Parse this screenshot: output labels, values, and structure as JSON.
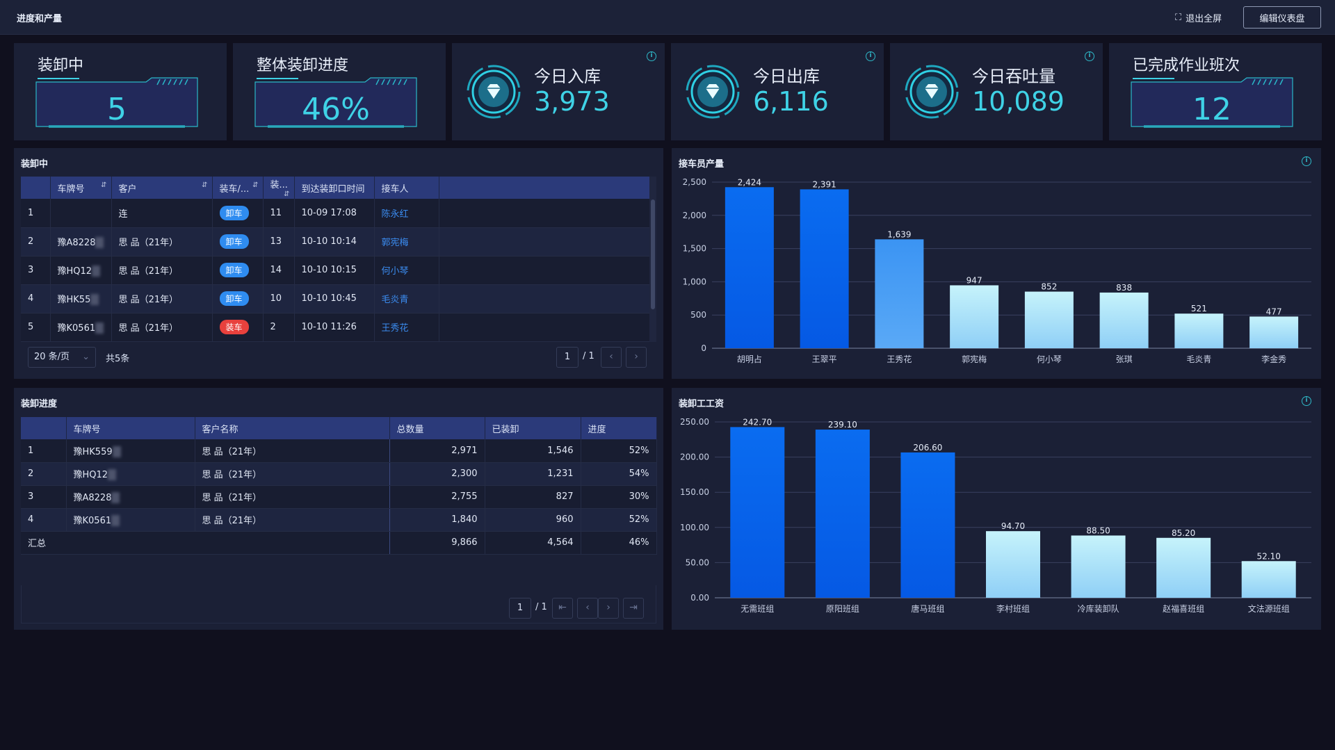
{
  "header": {
    "title": "进度和产量",
    "exit_label": "退出全屏",
    "edit_label": "编辑仪表盘"
  },
  "kpis": [
    {
      "title": "装卸中",
      "value": "5"
    },
    {
      "title": "整体装卸进度",
      "value": "46%"
    },
    {
      "title": "今日入库",
      "value": "3,973"
    },
    {
      "title": "今日出库",
      "value": "6,116"
    },
    {
      "title": "今日吞吐量",
      "value": "10,089"
    },
    {
      "title": "已完成作业班次",
      "value": "12"
    }
  ],
  "loading": {
    "title": "装卸中",
    "columns": [
      "",
      "车牌号",
      "客户",
      "装车/...",
      "装...",
      "到达装卸口时间",
      "接车人"
    ],
    "rows": [
      {
        "idx": "1",
        "plate": "",
        "customer": "连",
        "type": "卸车",
        "type_color": "blue",
        "qty": "11",
        "arrive": "10-09 17:08",
        "receiver": "陈永红"
      },
      {
        "idx": "2",
        "plate": "豫A8228",
        "customer": "思   品（21年）",
        "type": "卸车",
        "type_color": "blue",
        "qty": "13",
        "arrive": "10-10 10:14",
        "receiver": "郭宪梅"
      },
      {
        "idx": "3",
        "plate": "豫HQ12",
        "customer": "思   品（21年）",
        "type": "卸车",
        "type_color": "blue",
        "qty": "14",
        "arrive": "10-10 10:15",
        "receiver": "何小琴"
      },
      {
        "idx": "4",
        "plate": "豫HK55",
        "customer": "思   品（21年）",
        "type": "卸车",
        "type_color": "blue",
        "qty": "10",
        "arrive": "10-10 10:45",
        "receiver": "毛炎青"
      },
      {
        "idx": "5",
        "plate": "豫K0561",
        "customer": "思   品（21年）",
        "type": "装车",
        "type_color": "red",
        "qty": "2",
        "arrive": "10-10 11:26",
        "receiver": "王秀花"
      }
    ],
    "page_size": "20 条/页",
    "total": "共5条",
    "page": "1",
    "page_total": "/ 1"
  },
  "progress": {
    "title": "装卸进度",
    "columns": [
      "",
      "车牌号",
      "客户名称",
      "总数量",
      "已装卸",
      "进度"
    ],
    "rows": [
      {
        "idx": "1",
        "plate": "豫HK559",
        "customer": "思   品（21年）",
        "total": "2,971",
        "done": "1,546",
        "pct": "52%"
      },
      {
        "idx": "2",
        "plate": "豫HQ12",
        "customer": "思   品（21年）",
        "total": "2,300",
        "done": "1,231",
        "pct": "54%"
      },
      {
        "idx": "3",
        "plate": "豫A8228",
        "customer": "思   品（21年）",
        "total": "2,755",
        "done": "827",
        "pct": "30%"
      },
      {
        "idx": "4",
        "plate": "豫K0561",
        "customer": "思   品（21年）",
        "total": "1,840",
        "done": "960",
        "pct": "52%"
      }
    ],
    "summary": {
      "label": "汇总",
      "total": "9,866",
      "done": "4,564",
      "pct": "46%"
    },
    "page": "1",
    "page_total": "/ 1"
  },
  "chart_data": [
    {
      "type": "bar",
      "title": "接车员产量",
      "categories": [
        "胡明占",
        "王翠平",
        "王秀花",
        "郭宪梅",
        "何小琴",
        "张琪",
        "毛炎青",
        "李金秀"
      ],
      "values": [
        2424,
        2391,
        1639,
        947,
        852,
        838,
        521,
        477
      ],
      "labels": [
        "2,424",
        "2,391",
        "1,639",
        "947",
        "852",
        "838",
        "521",
        "477"
      ],
      "yticks": [
        "2,500",
        "2,000",
        "1,500",
        "1,000",
        "500",
        "0"
      ],
      "ylim": [
        0,
        2500
      ],
      "grid": true
    },
    {
      "type": "bar",
      "title": "装卸工工资",
      "categories": [
        "无需班组",
        "原阳班组",
        "唐马班组",
        "李村班组",
        "冷库装卸队",
        "赵福喜班组",
        "文法源班组"
      ],
      "values": [
        242.7,
        239.1,
        206.6,
        94.7,
        88.5,
        85.2,
        52.1
      ],
      "labels": [
        "242.70",
        "239.10",
        "206.60",
        "94.70",
        "88.50",
        "85.20",
        "52.10"
      ],
      "yticks": [
        "250.00",
        "200.00",
        "150.00",
        "100.00",
        "50.00",
        "0.00"
      ],
      "ylim": [
        0,
        250
      ],
      "grid": true
    }
  ],
  "colors": {
    "accent": "#3fd2e6",
    "bar_dark": "#0762ee",
    "bar_light": "#a8dcf8",
    "header_bg": "#2b3a7a"
  }
}
